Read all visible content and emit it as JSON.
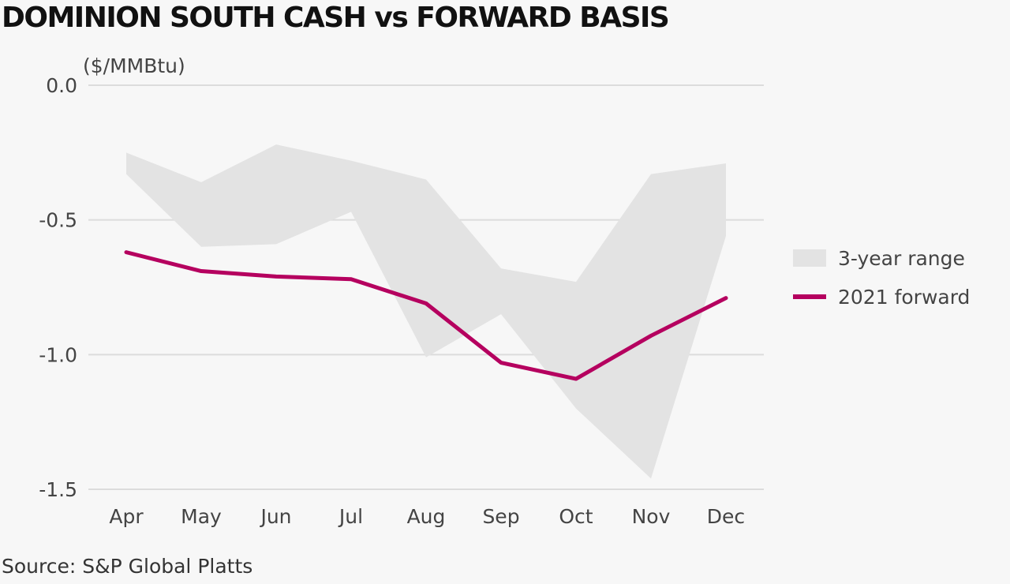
{
  "title": "DOMINION SOUTH CASH vs FORWARD BASIS",
  "source": "Source: S&P Global Platts",
  "colors": {
    "background": "#f7f7f7",
    "grid": "#dcdcdc",
    "range_fill": "#e3e3e3",
    "forward_line": "#b5005f"
  },
  "chart_data": {
    "type": "line",
    "ylabel": "($/MMBtu)",
    "ylim": [
      -1.5,
      0.0
    ],
    "yticks": [
      0.0,
      -0.5,
      -1.0,
      -1.5
    ],
    "ytick_labels": [
      "0.0",
      "-0.5",
      "-1.0",
      "-1.5"
    ],
    "grid": true,
    "legend_position": "right",
    "categories": [
      "Apr",
      "May",
      "Jun",
      "Jul",
      "Aug",
      "Sep",
      "Oct",
      "Nov",
      "Dec"
    ],
    "range_series": {
      "name": "3-year range",
      "upper": [
        -0.25,
        -0.36,
        -0.22,
        -0.28,
        -0.35,
        -0.68,
        -0.73,
        -0.33,
        -0.29
      ],
      "lower": [
        -0.33,
        -0.6,
        -0.59,
        -0.47,
        -1.01,
        -0.85,
        -1.2,
        -1.46,
        -0.56
      ]
    },
    "series": [
      {
        "name": "2021 forward",
        "values": [
          -0.62,
          -0.69,
          -0.71,
          -0.72,
          -0.81,
          -1.03,
          -1.09,
          -0.93,
          -0.79
        ]
      }
    ]
  }
}
